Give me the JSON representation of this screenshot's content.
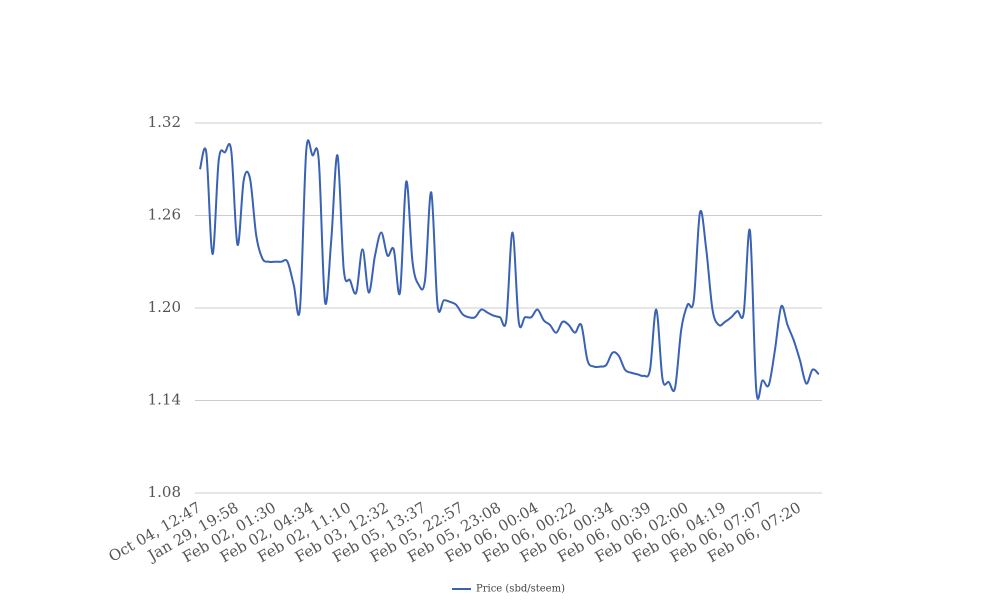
{
  "chart_data": {
    "type": "line",
    "categories": [
      "Oct 04, 12:47",
      null,
      null,
      null,
      null,
      null,
      "Jan 29, 19:58",
      null,
      null,
      null,
      null,
      null,
      "Feb 02, 01:30",
      null,
      null,
      null,
      null,
      null,
      "Feb 02, 04:34",
      null,
      null,
      null,
      null,
      null,
      "Feb 02, 11:10",
      null,
      null,
      null,
      null,
      null,
      "Feb 03, 12:32",
      null,
      null,
      null,
      null,
      null,
      "Feb 05, 13:37",
      null,
      null,
      null,
      null,
      null,
      "Feb 05, 22:57",
      null,
      null,
      null,
      null,
      null,
      "Feb 05, 23:08",
      null,
      null,
      null,
      null,
      null,
      "Feb 06, 00:04",
      null,
      null,
      null,
      null,
      null,
      "Feb 06, 00:22",
      null,
      null,
      null,
      null,
      null,
      "Feb 06, 00:34",
      null,
      null,
      null,
      null,
      null,
      "Feb 06, 00:39",
      null,
      null,
      null,
      null,
      null,
      "Feb 06, 02:00",
      null,
      null,
      null,
      null,
      null,
      "Feb 06, 04:19",
      null,
      null,
      null,
      null,
      null,
      "Feb 06, 07:07",
      null,
      null,
      null,
      null,
      null,
      "Feb 06, 07:20",
      null,
      null,
      null
    ],
    "series": [
      {
        "name": "Price (sbd/steem)",
        "color": "#3a62b4",
        "values": [
          1.29,
          1.301,
          1.235,
          1.296,
          1.301,
          1.302,
          1.241,
          1.283,
          1.284,
          1.247,
          1.232,
          1.23,
          1.23,
          1.23,
          1.23,
          1.215,
          1.2,
          1.302,
          1.299,
          1.296,
          1.204,
          1.244,
          1.299,
          1.225,
          1.218,
          1.21,
          1.238,
          1.21,
          1.234,
          1.249,
          1.234,
          1.238,
          1.21,
          1.282,
          1.23,
          1.215,
          1.218,
          1.275,
          1.202,
          1.205,
          1.204,
          1.202,
          1.196,
          1.194,
          1.194,
          1.199,
          1.197,
          1.195,
          1.194,
          1.192,
          1.249,
          1.191,
          1.194,
          1.194,
          1.199,
          1.192,
          1.189,
          1.184,
          1.191,
          1.189,
          1.184,
          1.189,
          1.166,
          1.162,
          1.162,
          1.163,
          1.171,
          1.169,
          1.16,
          1.158,
          1.157,
          1.156,
          1.16,
          1.199,
          1.154,
          1.152,
          1.148,
          1.186,
          1.202,
          1.205,
          1.262,
          1.238,
          1.199,
          1.189,
          1.191,
          1.194,
          1.198,
          1.197,
          1.25,
          1.147,
          1.153,
          1.15,
          1.173,
          1.201,
          1.189,
          1.179,
          1.166,
          1.151,
          1.16,
          1.157
        ]
      }
    ],
    "ylim": [
      1.08,
      1.32
    ],
    "yticks": [
      {
        "value": 1.08,
        "label": "1.08"
      },
      1.14,
      {
        "value": 1.2,
        "label": "1.20"
      },
      1.26,
      1.32
    ],
    "grid": true,
    "legend": "bottom"
  }
}
